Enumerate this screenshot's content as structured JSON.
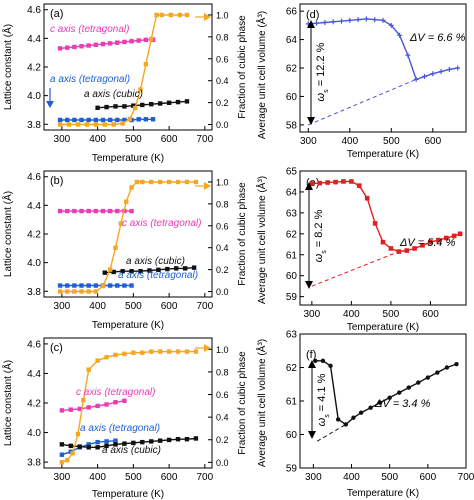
{
  "chart_data": [
    {
      "panel": "(a)",
      "type": "line",
      "xlabel": "Temperature (K)",
      "ylabel_left": "Lattice constant (Å)",
      "ylabel_right": "Fraction of cubic phase",
      "xlim": [
        250,
        720
      ],
      "xticks": [
        300,
        400,
        500,
        600,
        700
      ],
      "ylim_left": [
        3.76,
        4.64
      ],
      "yticks_left": [
        "3.8",
        "4.0",
        "4.2",
        "4.4",
        "4.6"
      ],
      "ylim_right": [
        -0.05,
        1.1
      ],
      "yticks_right": [
        "0.0",
        "0.2",
        "0.4",
        "0.6",
        "0.8",
        "1.0"
      ],
      "series": [
        {
          "name": "c axis (tetragonal)",
          "axis": "left",
          "color": "#e83cb5",
          "x": [
            295,
            315,
            335,
            355,
            375,
            395,
            415,
            435,
            455,
            475,
            495,
            515,
            535,
            555
          ],
          "y": [
            4.33,
            4.335,
            4.34,
            4.345,
            4.35,
            4.355,
            4.36,
            4.365,
            4.37,
            4.375,
            4.38,
            4.385,
            4.39,
            4.39
          ]
        },
        {
          "name": "a axis (tetragonal)",
          "axis": "left",
          "color": "#1f5fd6",
          "x": [
            295,
            315,
            335,
            355,
            375,
            395,
            415,
            435,
            455,
            475,
            495,
            515,
            535,
            555
          ],
          "y": [
            3.83,
            3.83,
            3.83,
            3.83,
            3.83,
            3.83,
            3.83,
            3.83,
            3.83,
            3.83,
            3.83,
            3.835,
            3.835,
            3.835
          ]
        },
        {
          "name": "a axis (cubic)",
          "axis": "left",
          "color": "#111111",
          "x": [
            400,
            425,
            450,
            475,
            500,
            525,
            550,
            575,
            600,
            625,
            650
          ],
          "y": [
            3.915,
            3.92,
            3.925,
            3.925,
            3.93,
            3.935,
            3.94,
            3.945,
            3.95,
            3.955,
            3.96
          ]
        },
        {
          "name": "",
          "axis": "right",
          "color": "#f5a623",
          "x": [
            295,
            320,
            345,
            370,
            395,
            420,
            445,
            470,
            490,
            505,
            520,
            535,
            550,
            565,
            580,
            605,
            630,
            650
          ],
          "y": [
            0,
            0,
            0,
            0,
            0,
            0,
            0,
            0.01,
            0.05,
            0.15,
            0.32,
            0.55,
            0.78,
            1.0,
            1.0,
            1.0,
            1.0,
            1.0
          ]
        }
      ],
      "labels": [
        {
          "text": "c axis (tetragonal)",
          "color": "#e83cb5"
        },
        {
          "text": "a axis (tetragonal)",
          "color": "#1f5fd6"
        },
        {
          "text": "a axis (cubic)",
          "color": "#111111"
        }
      ]
    },
    {
      "panel": "(b)",
      "type": "line",
      "xlabel": "Temperature (K)",
      "ylabel_left": "Lattice constant (Å)",
      "ylabel_right": "Fraction of cubic phase",
      "xlim": [
        250,
        720
      ],
      "xticks": [
        300,
        400,
        500,
        600,
        700
      ],
      "ylim_left": [
        3.76,
        4.64
      ],
      "yticks_left": [
        "3.8",
        "4.0",
        "4.2",
        "4.4",
        "4.6"
      ],
      "ylim_right": [
        -0.05,
        1.1
      ],
      "yticks_right": [
        "0.0",
        "0.2",
        "0.4",
        "0.6",
        "0.8",
        "1.0"
      ],
      "series": [
        {
          "name": "c axis (tetragonal)",
          "axis": "left",
          "color": "#e83cb5",
          "x": [
            295,
            315,
            335,
            355,
            375,
            395,
            415,
            435,
            455,
            475,
            495
          ],
          "y": [
            4.36,
            4.36,
            4.36,
            4.36,
            4.36,
            4.36,
            4.36,
            4.36,
            4.36,
            4.36,
            4.36
          ]
        },
        {
          "name": "a axis (tetragonal)",
          "axis": "left",
          "color": "#1f5fd6",
          "x": [
            295,
            315,
            335,
            355,
            375,
            395,
            415,
            435,
            455,
            475,
            495
          ],
          "y": [
            3.84,
            3.84,
            3.84,
            3.84,
            3.84,
            3.84,
            3.84,
            3.84,
            3.84,
            3.84,
            3.84
          ]
        },
        {
          "name": "a axis (cubic)",
          "axis": "left",
          "color": "#111111",
          "x": [
            420,
            445,
            470,
            495,
            520,
            545,
            570,
            595,
            620,
            645,
            670
          ],
          "y": [
            3.93,
            3.935,
            3.94,
            3.94,
            3.94,
            3.945,
            3.95,
            3.955,
            3.96,
            3.96,
            3.965
          ]
        },
        {
          "name": "",
          "axis": "right",
          "color": "#f5a623",
          "x": [
            295,
            315,
            335,
            355,
            375,
            395,
            415,
            435,
            450,
            465,
            480,
            495,
            510,
            525,
            550,
            575,
            600,
            625,
            650,
            675
          ],
          "y": [
            0,
            0,
            0,
            0,
            0,
            0,
            0.05,
            0.2,
            0.4,
            0.62,
            0.82,
            0.95,
            1.0,
            1.0,
            1.0,
            1.0,
            1.0,
            1.0,
            1.0,
            1.0
          ]
        }
      ],
      "labels": [
        {
          "text": "c axis (tetragonal)",
          "color": "#e83cb5"
        },
        {
          "text": "a axis (cubic)",
          "color": "#111111"
        },
        {
          "text": "a axis (tetragonal)",
          "color": "#1f5fd6"
        }
      ]
    },
    {
      "panel": "(c)",
      "type": "line",
      "xlabel": "Temperature (K)",
      "ylabel_left": "Lattice constant (Å)",
      "ylabel_right": "Fraction of cubic phase",
      "xlim": [
        250,
        720
      ],
      "xticks": [
        300,
        400,
        500,
        600,
        700
      ],
      "ylim_left": [
        3.76,
        4.64
      ],
      "yticks_left": [
        "3.8",
        "4.0",
        "4.2",
        "4.4",
        "4.6"
      ],
      "ylim_right": [
        -0.05,
        1.1
      ],
      "yticks_right": [
        "0.0",
        "0.2",
        "0.4",
        "0.6",
        "0.8",
        "1.0"
      ],
      "series": [
        {
          "name": "c axis (tetragonal)",
          "axis": "left",
          "color": "#e83cb5",
          "x": [
            300,
            325,
            350,
            375,
            400,
            425,
            450,
            475
          ],
          "y": [
            4.15,
            4.155,
            4.16,
            4.17,
            4.18,
            4.19,
            4.205,
            4.215
          ]
        },
        {
          "name": "a axis (tetragonal)",
          "axis": "left",
          "color": "#1f5fd6",
          "x": [
            300,
            325,
            350,
            375,
            400,
            425,
            450
          ],
          "y": [
            3.85,
            3.87,
            3.9,
            3.92,
            3.935,
            3.94,
            3.945
          ]
        },
        {
          "name": "a axis (cubic)",
          "axis": "left",
          "color": "#111111",
          "x": [
            300,
            325,
            350,
            375,
            400,
            425,
            450,
            475,
            500,
            525,
            550,
            575,
            600,
            625,
            650,
            675
          ],
          "y": [
            3.92,
            3.91,
            3.905,
            3.9,
            3.9,
            3.91,
            3.92,
            3.925,
            3.93,
            3.935,
            3.94,
            3.945,
            3.95,
            3.955,
            3.955,
            3.96
          ]
        },
        {
          "name": "",
          "axis": "right",
          "color": "#f5a623",
          "x": [
            300,
            315,
            330,
            345,
            360,
            375,
            400,
            425,
            450,
            475,
            500,
            525,
            550,
            575,
            600,
            625,
            650,
            675
          ],
          "y": [
            0,
            0.02,
            0.08,
            0.25,
            0.55,
            0.82,
            0.9,
            0.93,
            0.95,
            0.96,
            0.97,
            0.97,
            0.98,
            0.98,
            0.98,
            0.98,
            0.98,
            0.98
          ]
        }
      ],
      "labels": [
        {
          "text": "c axis (tetragonal)",
          "color": "#e83cb5"
        },
        {
          "text": "a axis (tetragonal)",
          "color": "#1f5fd6"
        },
        {
          "text": "a axis (cubic)",
          "color": "#111111"
        }
      ]
    },
    {
      "panel": "(d)",
      "type": "line",
      "xlabel": "Temperature (K)",
      "ylabel": "Average unit cell volume (Å³)",
      "xlim": [
        280,
        680
      ],
      "xticks": [
        300,
        400,
        500,
        600
      ],
      "ylim": [
        57.5,
        66.5
      ],
      "yticks": [
        "58",
        "60",
        "62",
        "64",
        "66"
      ],
      "color": "#4a56d8",
      "x": [
        300,
        320,
        340,
        360,
        380,
        400,
        420,
        440,
        460,
        480,
        500,
        520,
        540,
        560,
        580,
        600,
        620,
        640,
        660
      ],
      "y": [
        65.1,
        65.15,
        65.2,
        65.25,
        65.3,
        65.35,
        65.4,
        65.45,
        65.4,
        65.35,
        65.0,
        64.3,
        62.9,
        61.2,
        61.4,
        61.6,
        61.75,
        61.9,
        62.0
      ],
      "extrapolation": {
        "x": [
          300,
          560
        ],
        "y": [
          58.0,
          61.2
        ]
      },
      "annotations": [
        "ΔV = 6.6 %",
        "ω",
        "s",
        " = 12.2 %"
      ]
    },
    {
      "panel": "(e)",
      "type": "line",
      "xlabel": "Temperature (K)",
      "ylabel": "Average unit cell volume (Å³)",
      "xlim": [
        270,
        690
      ],
      "xticks": [
        300,
        400,
        500,
        600
      ],
      "ylim": [
        58.6,
        65.0
      ],
      "yticks": [
        "59",
        "60",
        "61",
        "62",
        "63",
        "64",
        "65"
      ],
      "color": "#e02020",
      "x": [
        300,
        320,
        340,
        360,
        380,
        400,
        420,
        440,
        460,
        480,
        500,
        520,
        540,
        560,
        580,
        600,
        620,
        640,
        660,
        675
      ],
      "y": [
        64.4,
        64.42,
        64.45,
        64.47,
        64.5,
        64.5,
        64.3,
        63.7,
        62.5,
        61.6,
        61.3,
        61.15,
        61.2,
        61.3,
        61.45,
        61.6,
        61.7,
        61.8,
        61.9,
        62.0
      ],
      "extrapolation": {
        "x": [
          300,
          520
        ],
        "y": [
          59.5,
          61.15
        ]
      },
      "annotations": [
        "ΔV = 5.4 %",
        "ω",
        "s",
        " = 8.2 %"
      ]
    },
    {
      "panel": "(f)",
      "type": "line",
      "xlabel": "Temperature (K)",
      "ylabel": "Average unit cell volume (Å³)",
      "xlim": [
        265,
        700
      ],
      "xticks": [
        300,
        400,
        500,
        600,
        700
      ],
      "ylim": [
        59.0,
        63.0
      ],
      "yticks": [
        "59",
        "60",
        "61",
        "62",
        "63"
      ],
      "color": "#111111",
      "x": [
        305,
        325,
        345,
        365,
        385,
        405,
        425,
        450,
        475,
        500,
        525,
        550,
        575,
        600,
        625,
        650,
        675
      ],
      "y": [
        62.2,
        62.2,
        62.05,
        60.45,
        60.3,
        60.5,
        60.65,
        60.8,
        60.95,
        61.1,
        61.25,
        61.4,
        61.55,
        61.7,
        61.85,
        62.0,
        62.1
      ],
      "extrapolation": {
        "x": [
          310,
          385
        ],
        "y": [
          59.8,
          60.3
        ]
      },
      "annotations": [
        "ΔV = 3.4 %",
        "ω",
        "s",
        " = 4.1 %"
      ]
    }
  ]
}
